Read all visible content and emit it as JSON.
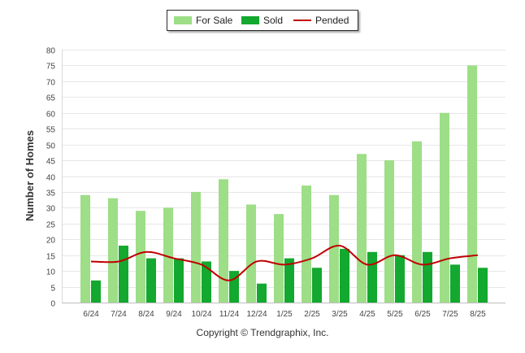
{
  "chart_data": {
    "type": "bar",
    "ylabel": "Number of Homes",
    "xlabel": "",
    "ylim": [
      0,
      80
    ],
    "yticks": [
      0,
      5,
      10,
      15,
      20,
      25,
      30,
      35,
      40,
      45,
      50,
      55,
      60,
      65,
      70,
      75,
      80
    ],
    "categories": [
      "6/24",
      "7/24",
      "8/24",
      "9/24",
      "10/24",
      "11/24",
      "12/24",
      "1/25",
      "2/25",
      "3/25",
      "4/25",
      "5/25",
      "6/25",
      "7/25",
      "8/25"
    ],
    "series": [
      {
        "name": "For Sale",
        "type": "bar",
        "color": "#9dde87",
        "values": [
          34,
          33,
          29,
          30,
          35,
          39,
          31,
          28,
          37,
          34,
          47,
          45,
          51,
          60,
          75
        ]
      },
      {
        "name": "Sold",
        "type": "bar",
        "color": "#13a82f",
        "values": [
          7,
          18,
          14,
          14,
          13,
          10,
          6,
          14,
          11,
          17,
          16,
          15,
          16,
          12,
          11
        ]
      },
      {
        "name": "Pended",
        "type": "line",
        "color": "#c00000",
        "values": [
          13,
          13,
          16,
          14,
          12,
          7,
          13,
          12,
          14,
          18,
          12,
          15,
          12,
          14,
          15
        ]
      }
    ],
    "legend_position": "top-center",
    "grid": true
  },
  "footer": {
    "copyright": "Copyright © Trendgraphix, Inc."
  }
}
